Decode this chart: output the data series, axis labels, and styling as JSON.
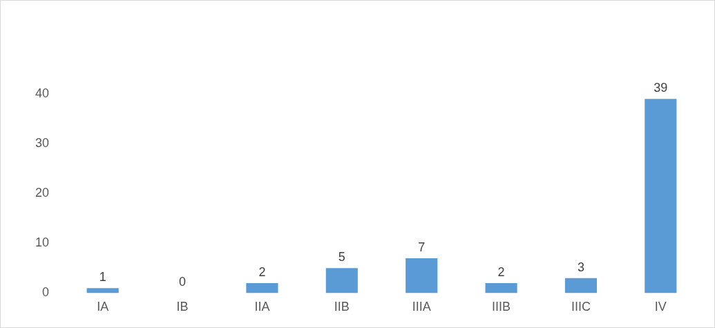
{
  "chart_data": {
    "type": "bar",
    "categories": [
      "IA",
      "IB",
      "IIA",
      "IIB",
      "IIIA",
      "IIIB",
      "IIIC",
      "IV"
    ],
    "values": [
      1,
      0,
      2,
      5,
      7,
      2,
      3,
      39
    ],
    "color": "#5b9bd5",
    "ylim": [
      0,
      40
    ],
    "yticks": [
      0,
      10,
      20,
      30,
      40
    ],
    "grid": false,
    "data_labels": true
  }
}
